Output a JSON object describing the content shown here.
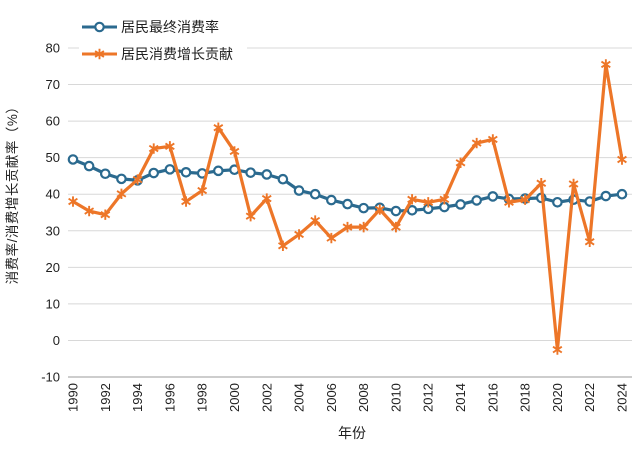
{
  "chart_data": {
    "type": "line",
    "title": "",
    "xlabel": "年份",
    "ylabel": "消费率/消费增长贡献率（%）",
    "ylim": [
      -10,
      80
    ],
    "ytick_step": 10,
    "xtick_step": 2,
    "grid": true,
    "legend_position": "top-left",
    "x": [
      1990,
      1991,
      1992,
      1993,
      1994,
      1995,
      1996,
      1997,
      1998,
      1999,
      2000,
      2001,
      2002,
      2003,
      2004,
      2005,
      2006,
      2007,
      2008,
      2009,
      2010,
      2011,
      2012,
      2013,
      2014,
      2015,
      2016,
      2017,
      2018,
      2019,
      2020,
      2021,
      2022,
      2023,
      2024
    ],
    "series": [
      {
        "name": "居民最终消费率",
        "marker": "circle",
        "color": "#2b6a8f",
        "values": [
          49.5,
          47.7,
          45.6,
          44.2,
          43.8,
          45.8,
          46.8,
          46.0,
          45.7,
          46.4,
          46.7,
          45.9,
          45.4,
          44.1,
          41.0,
          40.0,
          38.4,
          37.3,
          36.2,
          36.3,
          35.4,
          35.6,
          36.0,
          36.5,
          37.2,
          38.3,
          39.4,
          38.7,
          38.8,
          39.0,
          37.8,
          38.5,
          38.0,
          39.5,
          40.0
        ]
      },
      {
        "name": "居民消费增长贡献",
        "marker": "asterisk",
        "color": "#ed7628",
        "values": [
          38.0,
          35.4,
          34.4,
          40.1,
          44.0,
          52.5,
          53.1,
          38.0,
          41.0,
          58.2,
          51.7,
          34.0,
          38.8,
          25.9,
          29.0,
          32.8,
          28.0,
          31.0,
          31.0,
          35.8,
          31.0,
          38.6,
          37.8,
          38.6,
          48.6,
          54.0,
          55.0,
          37.8,
          38.5,
          43.0,
          -2.5,
          42.8,
          27.0,
          75.5,
          49.5
        ]
      }
    ],
    "colors": {
      "gridline": "#d8d8d8",
      "axis_line": "#9b9b9b",
      "text": "#1f1f1f"
    }
  }
}
